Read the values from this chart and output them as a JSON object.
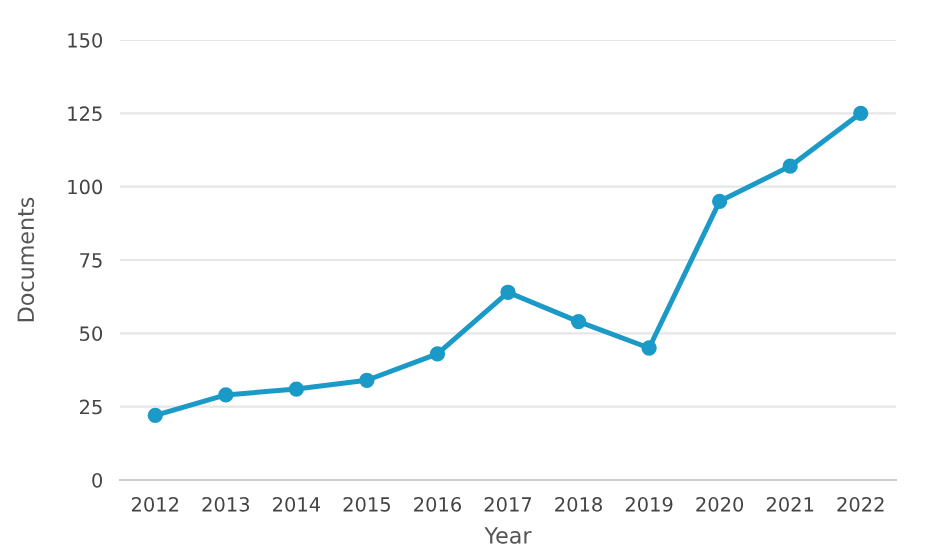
{
  "chart_data": {
    "type": "line",
    "xlabel": "Year",
    "ylabel": "Documents",
    "categories": [
      "2012",
      "2013",
      "2014",
      "2015",
      "2016",
      "2017",
      "2018",
      "2019",
      "2020",
      "2021",
      "2022"
    ],
    "series": [
      {
        "color": "#1b9ac8",
        "values": [
          22,
          29,
          31,
          34,
          43,
          64,
          54,
          45,
          95,
          107,
          125
        ]
      }
    ],
    "ylim": [
      0,
      150
    ],
    "yticks": [
      0,
      25,
      50,
      75,
      100,
      125,
      150
    ],
    "grid": "y",
    "marker": "circle",
    "line_style": "solid"
  }
}
